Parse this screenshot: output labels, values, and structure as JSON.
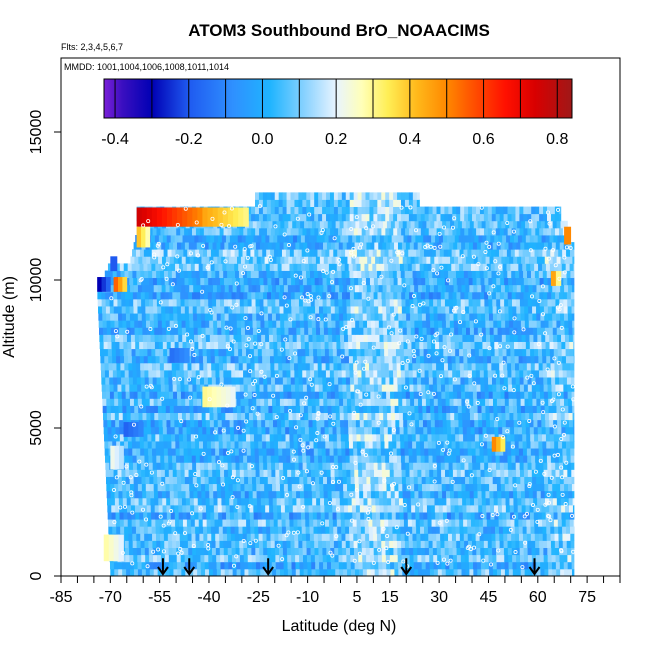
{
  "chart_data": {
    "type": "heatmap",
    "title": "ATOM3 Southbound BrO_NOAACIMS",
    "subtitle_flights": "Flts: 2,3,4,5,6,7",
    "subtitle_dates": "MMDD: 1001,1004,1006,1008,1011,1014",
    "xlabel": "Latitude (deg N)",
    "ylabel": "Altitude (m)",
    "xlim": [
      -85,
      85
    ],
    "ylim": [
      0,
      17500
    ],
    "x_ticks": [
      -85,
      -70,
      -55,
      -40,
      -25,
      -10,
      5,
      15,
      30,
      45,
      60,
      75
    ],
    "x_tick_labels": [
      "-85",
      "-70",
      "-55",
      "-40",
      "-25",
      "-10",
      "5",
      "15",
      "30",
      "45",
      "60",
      "75"
    ],
    "y_ticks": [
      0,
      5000,
      10000,
      15000
    ],
    "y_tick_labels": [
      "0",
      "5000",
      "10000",
      "15000"
    ],
    "colorbar": {
      "range": [
        -0.43,
        0.84
      ],
      "ticks": [
        -0.4,
        -0.2,
        0.0,
        0.2,
        0.4,
        0.6,
        0.8
      ],
      "tick_labels": [
        "-0.4",
        "-0.2",
        "0.0",
        "0.2",
        "0.4",
        "0.6",
        "0.8"
      ],
      "stops": [
        {
          "v": -0.43,
          "c": "#7b20d8"
        },
        {
          "v": -0.38,
          "c": "#3a0fc0"
        },
        {
          "v": -0.3,
          "c": "#0000b4"
        },
        {
          "v": -0.2,
          "c": "#1f5af0"
        },
        {
          "v": -0.08,
          "c": "#2f90ff"
        },
        {
          "v": 0.02,
          "c": "#1fb4ff"
        },
        {
          "v": 0.12,
          "c": "#8fd4ff"
        },
        {
          "v": 0.2,
          "c": "#e8f4ff"
        },
        {
          "v": 0.27,
          "c": "#ffffb8"
        },
        {
          "v": 0.34,
          "c": "#ffee55"
        },
        {
          "v": 0.42,
          "c": "#ffb81a"
        },
        {
          "v": 0.5,
          "c": "#ff8800"
        },
        {
          "v": 0.58,
          "c": "#ff4a00"
        },
        {
          "v": 0.66,
          "c": "#ff1000"
        },
        {
          "v": 0.74,
          "c": "#d80000"
        },
        {
          "v": 0.84,
          "c": "#a01818"
        }
      ]
    },
    "coverage": {
      "lat_range": [
        -70,
        71
      ],
      "altitude_range": [
        0,
        12900
      ],
      "base_value": 0.04,
      "notes": "Gridded BrO field, values mostly -0.1 to 0.2; high values near 12000 m at -62 to -40 deg N; localized high values near -67 deg N at 10000 m, near 65 deg N at 10000 m, and near 47 deg N at 4500 m"
    },
    "hotspots": [
      {
        "lat": [
          -62,
          -42
        ],
        "alt": [
          11800,
          12450
        ],
        "value": 0.75
      },
      {
        "lat": [
          -42,
          -28
        ],
        "alt": [
          11800,
          12450
        ],
        "value": 0.45
      },
      {
        "lat": [
          -62,
          -58
        ],
        "alt": [
          11100,
          11800
        ],
        "value": 0.4
      },
      {
        "lat": [
          -69,
          -65
        ],
        "alt": [
          9600,
          10100
        ],
        "value": 0.55
      },
      {
        "lat": [
          -74,
          -70
        ],
        "alt": [
          9600,
          10100
        ],
        "value": -0.3
      },
      {
        "lat": [
          -70,
          -68
        ],
        "alt": [
          10300,
          10800
        ],
        "value": -0.2
      },
      {
        "lat": [
          64,
          67
        ],
        "alt": [
          9800,
          10300
        ],
        "value": 0.45
      },
      {
        "lat": [
          68,
          70
        ],
        "alt": [
          11200,
          11800
        ],
        "value": 0.5
      },
      {
        "lat": [
          46,
          50
        ],
        "alt": [
          4200,
          4700
        ],
        "value": 0.5
      },
      {
        "lat": [
          -72,
          -66
        ],
        "alt": [
          500,
          1400
        ],
        "value": 0.28
      },
      {
        "lat": [
          -42,
          -32
        ],
        "alt": [
          5700,
          6400
        ],
        "value": 0.3
      },
      {
        "lat": [
          -70,
          -66
        ],
        "alt": [
          3600,
          4400
        ],
        "value": 0.22
      },
      {
        "lat": [
          -52,
          -46
        ],
        "alt": [
          7200,
          7700
        ],
        "value": -0.15
      },
      {
        "lat": [
          -66,
          -60
        ],
        "alt": [
          4700,
          5200
        ],
        "value": -0.18
      }
    ],
    "arrow_markers_lat": [
      -54,
      -46,
      -22,
      20,
      59
    ]
  }
}
